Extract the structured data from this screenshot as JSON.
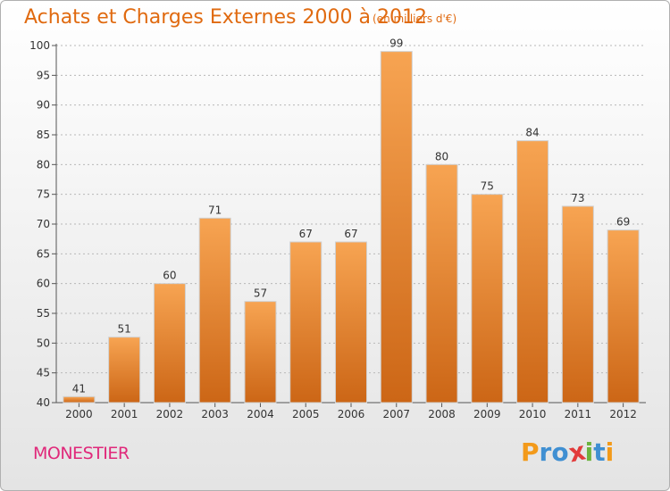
{
  "chart_data": {
    "type": "bar",
    "title": "Achats et Charges Externes 2000 à 2012",
    "subtitle": "(en milliers d'€)",
    "categories": [
      "2000",
      "2001",
      "2002",
      "2003",
      "2004",
      "2005",
      "2006",
      "2007",
      "2008",
      "2009",
      "2010",
      "2011",
      "2012"
    ],
    "values": [
      41,
      51,
      60,
      71,
      57,
      67,
      67,
      99,
      80,
      75,
      84,
      73,
      69
    ],
    "ylim": [
      40,
      100
    ],
    "yticks": [
      40,
      45,
      50,
      55,
      60,
      65,
      70,
      75,
      80,
      85,
      90,
      95,
      100
    ],
    "grid": true,
    "bar_color": "#f0892e"
  },
  "commune": "MONESTIER",
  "logo": {
    "letters": [
      "P",
      "r",
      "o",
      "x",
      "i",
      "t",
      "i"
    ],
    "colors": [
      "#f39a1a",
      "#3f8fd2",
      "#3f8fd2",
      "#e23b3b",
      "#6cb33e",
      "#3f8fd2",
      "#f39a1a"
    ]
  }
}
